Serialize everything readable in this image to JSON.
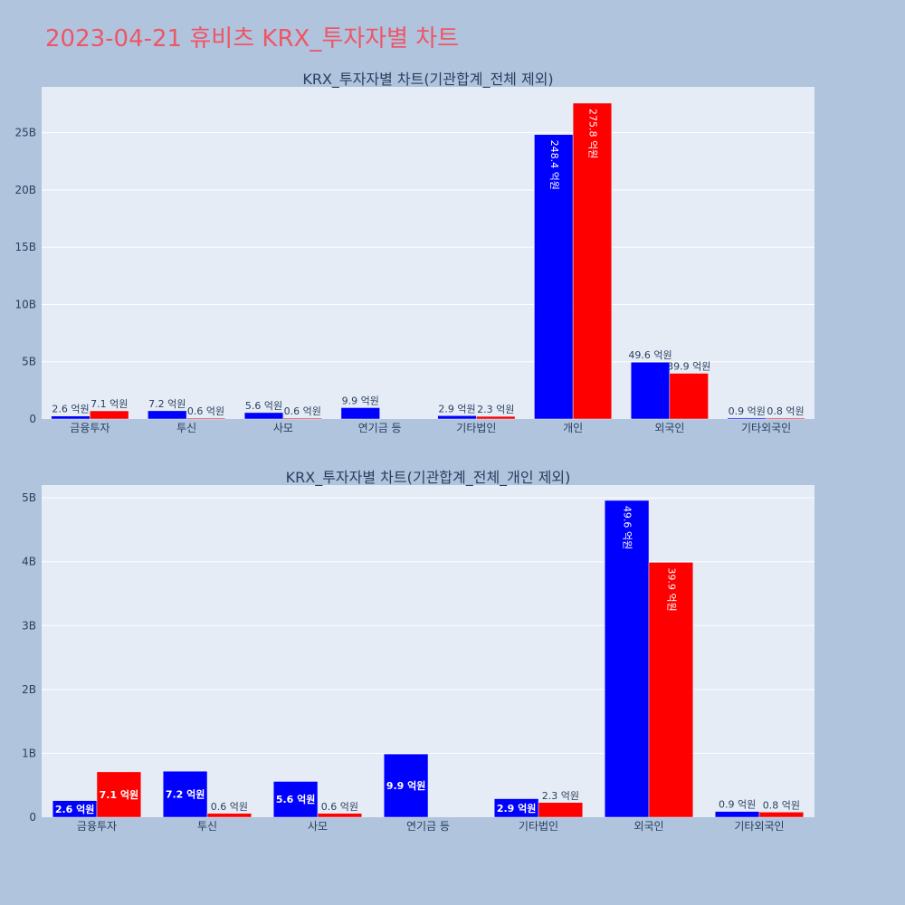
{
  "page": {
    "title": "2023-04-21 휴비츠 KRX_투자자별 차트"
  },
  "colors": {
    "background": "#b0c4de",
    "plot_bg": "#e5ecf6",
    "grid": "#ffffff",
    "title": "#ef5567",
    "text": "#2a3f5f",
    "series_buy": "#0000ff",
    "series_sell": "#ff0000"
  },
  "chart_data": [
    {
      "type": "bar",
      "title": "KRX_투자자별 차트(기관합계_전체 제외)",
      "categories": [
        "금융투자",
        "투신",
        "사모",
        "연기금 등",
        "기타법인",
        "개인",
        "외국인",
        "기타외국인"
      ],
      "yticks": [
        "0",
        "5B",
        "10B",
        "15B",
        "20B",
        "25B"
      ],
      "ylim": [
        0,
        29000000000
      ],
      "series": [
        {
          "color": "#0000ff",
          "values": [
            260000000,
            720000000,
            560000000,
            990000000,
            290000000,
            24840000000,
            4960000000,
            90000000
          ],
          "labels": [
            "2.6 억원",
            "7.2 억원",
            "5.6 억원",
            "9.9 억원",
            "2.9 억원",
            "248.4 억원",
            "49.6 억원",
            "0.9 억원"
          ]
        },
        {
          "color": "#ff0000",
          "values": [
            710000000,
            60000000,
            60000000,
            null,
            230000000,
            27580000000,
            3990000000,
            80000000
          ],
          "labels": [
            "7.1 억원",
            "0.6 억원",
            "0.6 억원",
            "",
            "2.3 억원",
            "275.8 억원",
            "39.9 억원",
            "0.8 억원"
          ]
        }
      ]
    },
    {
      "type": "bar",
      "title": "KRX_투자자별 차트(기관합계_전체_개인 제외)",
      "categories": [
        "금융투자",
        "투신",
        "사모",
        "연기금 등",
        "기타법인",
        "외국인",
        "기타외국인"
      ],
      "yticks": [
        "0",
        "1B",
        "2B",
        "3B",
        "4B",
        "5B"
      ],
      "ylim": [
        0,
        5200000000
      ],
      "series": [
        {
          "color": "#0000ff",
          "values": [
            260000000,
            720000000,
            560000000,
            990000000,
            290000000,
            4960000000,
            90000000
          ],
          "labels": [
            "2.6 억원",
            "7.2 억원",
            "5.6 억원",
            "9.9 억원",
            "2.9 억원",
            "49.6 억원",
            "0.9 억원"
          ]
        },
        {
          "color": "#ff0000",
          "values": [
            710000000,
            60000000,
            60000000,
            null,
            230000000,
            3990000000,
            80000000
          ],
          "labels": [
            "7.1 억원",
            "0.6 억원",
            "0.6 억원",
            "",
            "2.3 억원",
            "39.9 억원",
            "0.8 억원"
          ]
        }
      ]
    }
  ]
}
